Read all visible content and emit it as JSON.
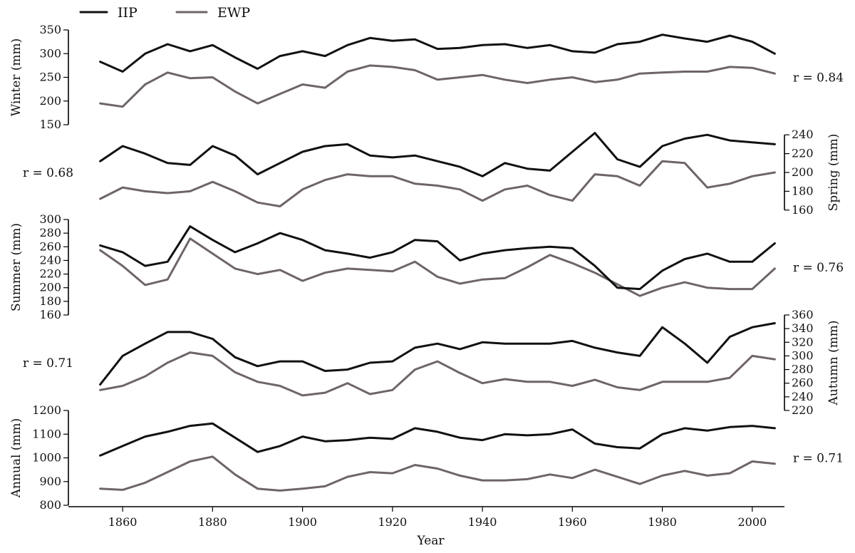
{
  "chart_data": {
    "type": "line",
    "xlabel": "Year",
    "xlim": [
      1850,
      2007
    ],
    "xticks": [
      1860,
      1880,
      1900,
      1920,
      1940,
      1960,
      1980,
      2000
    ],
    "series_info": [
      {
        "name": "IIP",
        "color": "#111111"
      },
      {
        "name": "EWP",
        "color": "#6e6568"
      }
    ],
    "panels": [
      {
        "key": "winter",
        "ylabel": "Winter (mm)",
        "axis_side": "left",
        "ylim": [
          150,
          350
        ],
        "yticks": [
          150,
          200,
          250,
          300,
          350
        ],
        "r_label": "r = 0.84",
        "r_side": "right",
        "series": [
          {
            "name": "IIP",
            "x": [
              1855,
              1860,
              1865,
              1870,
              1875,
              1880,
              1885,
              1890,
              1895,
              1900,
              1905,
              1910,
              1915,
              1920,
              1925,
              1930,
              1935,
              1940,
              1945,
              1950,
              1955,
              1960,
              1965,
              1970,
              1975,
              1980,
              1985,
              1990,
              1995,
              2000,
              2005
            ],
            "values": [
              283,
              262,
              300,
              320,
              305,
              318,
              292,
              268,
              295,
              305,
              295,
              318,
              333,
              327,
              330,
              310,
              312,
              318,
              320,
              312,
              318,
              305,
              302,
              320,
              325,
              340,
              332,
              325,
              338,
              325,
              300
            ]
          },
          {
            "name": "EWP",
            "x": [
              1855,
              1860,
              1865,
              1870,
              1875,
              1880,
              1885,
              1890,
              1895,
              1900,
              1905,
              1910,
              1915,
              1920,
              1925,
              1930,
              1935,
              1940,
              1945,
              1950,
              1955,
              1960,
              1965,
              1970,
              1975,
              1980,
              1985,
              1990,
              1995,
              2000,
              2005
            ],
            "values": [
              195,
              188,
              235,
              260,
              248,
              250,
              220,
              195,
              215,
              235,
              228,
              262,
              275,
              272,
              265,
              245,
              250,
              255,
              245,
              238,
              245,
              250,
              240,
              245,
              258,
              260,
              262,
              262,
              272,
              270,
              258
            ]
          }
        ]
      },
      {
        "key": "spring",
        "ylabel": "Spring (mm)",
        "axis_side": "right",
        "ylim": [
          150,
          250
        ],
        "yticks": [
          160,
          180,
          200,
          220,
          240
        ],
        "r_label": "r = 0.68",
        "r_side": "left",
        "series": [
          {
            "name": "IIP",
            "x": [
              1855,
              1860,
              1865,
              1870,
              1875,
              1880,
              1885,
              1890,
              1895,
              1900,
              1905,
              1910,
              1915,
              1920,
              1925,
              1930,
              1935,
              1940,
              1945,
              1950,
              1955,
              1960,
              1965,
              1970,
              1975,
              1980,
              1985,
              1990,
              1995,
              2000,
              2005
            ],
            "values": [
              212,
              228,
              220,
              210,
              208,
              228,
              218,
              198,
              210,
              222,
              228,
              230,
              218,
              216,
              218,
              212,
              206,
              196,
              210,
              204,
              202,
              222,
              242,
              214,
              206,
              228,
              236,
              240,
              234,
              232,
              230
            ]
          },
          {
            "name": "EWP",
            "x": [
              1855,
              1860,
              1865,
              1870,
              1875,
              1880,
              1885,
              1890,
              1895,
              1900,
              1905,
              1910,
              1915,
              1920,
              1925,
              1930,
              1935,
              1940,
              1945,
              1950,
              1955,
              1960,
              1965,
              1970,
              1975,
              1980,
              1985,
              1990,
              1995,
              2000,
              2005
            ],
            "values": [
              172,
              184,
              180,
              178,
              180,
              190,
              180,
              168,
              164,
              182,
              192,
              198,
              196,
              196,
              188,
              186,
              182,
              170,
              182,
              186,
              176,
              170,
              198,
              196,
              186,
              212,
              210,
              184,
              188,
              196,
              200
            ]
          }
        ]
      },
      {
        "key": "summer",
        "ylabel": "Summer (mm)",
        "axis_side": "left",
        "ylim": [
          160,
          300
        ],
        "yticks": [
          160,
          180,
          200,
          220,
          240,
          260,
          280,
          300
        ],
        "r_label": "r = 0.76",
        "r_side": "right",
        "series": [
          {
            "name": "IIP",
            "x": [
              1855,
              1860,
              1865,
              1870,
              1875,
              1880,
              1885,
              1890,
              1895,
              1900,
              1905,
              1910,
              1915,
              1920,
              1925,
              1930,
              1935,
              1940,
              1945,
              1950,
              1955,
              1960,
              1965,
              1970,
              1975,
              1980,
              1985,
              1990,
              1995,
              2000,
              2005
            ],
            "values": [
              262,
              252,
              232,
              238,
              290,
              270,
              252,
              265,
              280,
              270,
              255,
              250,
              244,
              252,
              270,
              268,
              240,
              250,
              255,
              258,
              260,
              258,
              232,
              200,
              198,
              225,
              242,
              250,
              238,
              238,
              265
            ]
          },
          {
            "name": "EWP",
            "x": [
              1855,
              1860,
              1865,
              1870,
              1875,
              1880,
              1885,
              1890,
              1895,
              1900,
              1905,
              1910,
              1915,
              1920,
              1925,
              1930,
              1935,
              1940,
              1945,
              1950,
              1955,
              1960,
              1965,
              1970,
              1975,
              1980,
              1985,
              1990,
              1995,
              2000,
              2005
            ],
            "values": [
              255,
              232,
              204,
              212,
              272,
              250,
              228,
              220,
              226,
              210,
              222,
              228,
              226,
              224,
              238,
              216,
              206,
              212,
              214,
              230,
              248,
              236,
              222,
              205,
              188,
              200,
              208,
              200,
              198,
              198,
              228
            ]
          }
        ]
      },
      {
        "key": "autumn",
        "ylabel": "Autumn (mm)",
        "axis_side": "right",
        "ylim": [
          220,
          360
        ],
        "yticks": [
          220,
          240,
          260,
          280,
          300,
          320,
          340,
          360
        ],
        "r_label": "r = 0.71",
        "r_side": "left",
        "series": [
          {
            "name": "IIP",
            "x": [
              1855,
              1860,
              1865,
              1870,
              1875,
              1880,
              1885,
              1890,
              1895,
              1900,
              1905,
              1910,
              1915,
              1920,
              1925,
              1930,
              1935,
              1940,
              1945,
              1950,
              1955,
              1960,
              1965,
              1970,
              1975,
              1980,
              1985,
              1990,
              1995,
              2000,
              2005
            ],
            "values": [
              258,
              300,
              318,
              335,
              335,
              325,
              298,
              285,
              292,
              292,
              278,
              280,
              290,
              292,
              312,
              318,
              310,
              320,
              318,
              318,
              318,
              322,
              312,
              305,
              300,
              342,
              318,
              290,
              328,
              342,
              348
            ]
          },
          {
            "name": "EWP",
            "x": [
              1855,
              1860,
              1865,
              1870,
              1875,
              1880,
              1885,
              1890,
              1895,
              1900,
              1905,
              1910,
              1915,
              1920,
              1925,
              1930,
              1935,
              1940,
              1945,
              1950,
              1955,
              1960,
              1965,
              1970,
              1975,
              1980,
              1985,
              1990,
              1995,
              2000,
              2005
            ],
            "values": [
              250,
              256,
              270,
              290,
              305,
              300,
              276,
              262,
              256,
              242,
              246,
              260,
              244,
              250,
              280,
              292,
              275,
              260,
              266,
              262,
              262,
              256,
              265,
              254,
              250,
              262,
              262,
              262,
              268,
              300,
              295
            ]
          }
        ]
      },
      {
        "key": "annual",
        "ylabel": "Annual (mm)",
        "axis_side": "left",
        "ylim": [
          800,
          1200
        ],
        "yticks": [
          800,
          900,
          1000,
          1100,
          1200
        ],
        "r_label": "r = 0.71",
        "r_side": "right",
        "series": [
          {
            "name": "IIP",
            "x": [
              1855,
              1860,
              1865,
              1870,
              1875,
              1880,
              1885,
              1890,
              1895,
              1900,
              1905,
              1910,
              1915,
              1920,
              1925,
              1930,
              1935,
              1940,
              1945,
              1950,
              1955,
              1960,
              1965,
              1970,
              1975,
              1980,
              1985,
              1990,
              1995,
              2000,
              2005
            ],
            "values": [
              1010,
              1050,
              1090,
              1110,
              1135,
              1145,
              1085,
              1025,
              1050,
              1090,
              1070,
              1075,
              1085,
              1080,
              1125,
              1110,
              1085,
              1075,
              1100,
              1095,
              1100,
              1120,
              1060,
              1045,
              1040,
              1100,
              1125,
              1115,
              1130,
              1135,
              1125
            ]
          },
          {
            "name": "EWP",
            "x": [
              1855,
              1860,
              1865,
              1870,
              1875,
              1880,
              1885,
              1890,
              1895,
              1900,
              1905,
              1910,
              1915,
              1920,
              1925,
              1930,
              1935,
              1940,
              1945,
              1950,
              1955,
              1960,
              1965,
              1970,
              1975,
              1980,
              1985,
              1990,
              1995,
              2000,
              2005
            ],
            "values": [
              870,
              865,
              895,
              940,
              985,
              1005,
              930,
              870,
              862,
              870,
              880,
              920,
              940,
              935,
              970,
              955,
              925,
              905,
              905,
              910,
              930,
              915,
              950,
              920,
              890,
              925,
              945,
              925,
              935,
              985,
              975
            ]
          }
        ]
      }
    ]
  }
}
